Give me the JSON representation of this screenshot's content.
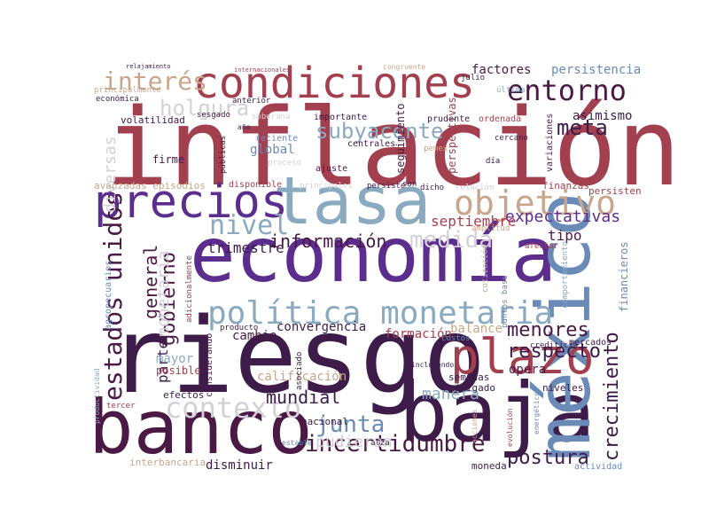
{
  "palette": {
    "wine": "#a3404f",
    "plum": "#3d1c4a",
    "deep": "#4a1a45",
    "purple": "#5b2d8c",
    "steel": "#8aaac0",
    "slate": "#6a8ab8",
    "tan": "#c9a58a",
    "pink": "#d4b4c0",
    "grey": "#c9c0cc"
  },
  "words": [
    {
      "id": "inflacion",
      "text": "inflación",
      "color": "#a3404f"
    },
    {
      "id": "riesgo",
      "text": "riesgo",
      "color": "#3d1c4a"
    },
    {
      "id": "economia",
      "text": "economía",
      "color": "#5b2d8c"
    },
    {
      "id": "banco",
      "text": "banco",
      "color": "#4a1a45"
    },
    {
      "id": "baja",
      "text": "baja",
      "color": "#3d1c4a"
    },
    {
      "id": "mexico",
      "text": "méxico",
      "color": "#6a8ab8"
    },
    {
      "id": "tasa",
      "text": "tasa",
      "color": "#8aaac0"
    },
    {
      "id": "precios",
      "text": "precios",
      "color": "#5b2d8c"
    },
    {
      "id": "condiciones",
      "text": "condiciones",
      "color": "#a3404f"
    },
    {
      "id": "plazo",
      "text": "plazo",
      "color": "#a3404f"
    },
    {
      "id": "politica_monetaria",
      "text": "política monetaria",
      "color": "#8aaac0"
    },
    {
      "id": "entorno",
      "text": "entorno",
      "color": "#4a1a45"
    },
    {
      "id": "objetivo",
      "text": "objetivo",
      "color": "#c9a58a"
    },
    {
      "id": "contexto",
      "text": "contexto",
      "color": "#d4d0d8"
    },
    {
      "id": "estados_unidos",
      "text": "estados unidos",
      "color": "#4a1a45"
    },
    {
      "id": "nivel",
      "text": "nivel",
      "color": "#8aaac0"
    },
    {
      "id": "interes",
      "text": "interés",
      "color": "#c9a58a"
    },
    {
      "id": "incertidumbre",
      "text": "incertidumbre",
      "color": "#4a1a45"
    },
    {
      "id": "holgura",
      "text": "holgura",
      "color": "#d4d0d8"
    },
    {
      "id": "subyacente",
      "text": "subyacente",
      "color": "#8aaac0"
    },
    {
      "id": "junta",
      "text": "junta",
      "color": "#6a8ab8"
    },
    {
      "id": "meta",
      "text": "meta",
      "color": "#3d1c4a"
    },
    {
      "id": "medida",
      "text": "medida",
      "color": "#d4d0d8"
    },
    {
      "id": "informacion",
      "text": "información",
      "color": "#4a1a45"
    },
    {
      "id": "postura",
      "text": "postura",
      "color": "#3d1c4a"
    },
    {
      "id": "crecimiento",
      "text": "crecimiento",
      "color": "#3d1c4a"
    },
    {
      "id": "expectativas",
      "text": "expectativas",
      "color": "#5b2d8c"
    },
    {
      "id": "gobierno",
      "text": "gobierno",
      "color": "#4a1a45"
    },
    {
      "id": "respecto",
      "text": "respecto",
      "color": "#3d1c4a"
    },
    {
      "id": "menores",
      "text": "menores",
      "color": "#4a1a45"
    },
    {
      "id": "general",
      "text": "general",
      "color": "#4a1a45"
    },
    {
      "id": "monetaria_v",
      "text": "monetaria",
      "color": "#d4d0d8"
    },
    {
      "id": "diversas",
      "text": "diversas",
      "color": "#d4d0d8"
    },
    {
      "id": "mundial",
      "text": "mundial",
      "color": "#3d1c4a"
    },
    {
      "id": "trimestre",
      "text": "trimestre",
      "color": "#3d1c4a"
    },
    {
      "id": "septiembre",
      "text": "septiembre",
      "color": "#a3404f"
    },
    {
      "id": "factores",
      "text": "factores",
      "color": "#4a1a45"
    },
    {
      "id": "persistencia",
      "text": "persistencia",
      "color": "#6a8ab8"
    },
    {
      "id": "asimismo",
      "text": "asimismo",
      "color": "#3d1c4a"
    },
    {
      "id": "tipo",
      "text": "tipo",
      "color": "#4a1a45"
    },
    {
      "id": "manera",
      "text": "manera",
      "color": "#8aaac0"
    },
    {
      "id": "pudieran",
      "text": "pudieran",
      "color": "#d4d0d8"
    },
    {
      "id": "parte",
      "text": "parte",
      "color": "#3d1c4a"
    },
    {
      "id": "cambio",
      "text": "cambio",
      "color": "#4a1a45"
    },
    {
      "id": "convergencia",
      "text": "convergencia",
      "color": "#3d1c4a"
    },
    {
      "id": "formacion",
      "text": "formación",
      "color": "#a3404f"
    },
    {
      "id": "balance",
      "text": "balance",
      "color": "#c9a58a"
    },
    {
      "id": "mayor",
      "text": "mayor",
      "color": "#8aaac0"
    },
    {
      "id": "calificacion",
      "text": "calificación",
      "color": "#c9a58a"
    },
    {
      "id": "disminuir",
      "text": "disminuir",
      "color": "#3d1c4a"
    },
    {
      "id": "opera",
      "text": "opera",
      "color": "#4a1a45"
    },
    {
      "id": "financieros",
      "text": "financieros",
      "color": "#6a8ab8"
    },
    {
      "id": "global",
      "text": "global",
      "color": "#6a8ab8"
    },
    {
      "id": "avanzadas_episodios",
      "text": "avanzadas episodios",
      "color": "#c9a58a"
    },
    {
      "id": "firme",
      "text": "firme",
      "color": "#3d1c4a"
    },
    {
      "id": "volatilidad",
      "text": "volatilidad",
      "color": "#3d1c4a"
    },
    {
      "id": "seguimiento",
      "text": "seguimiento",
      "color": "#4a1a45"
    },
    {
      "id": "perspectivas",
      "text": "perspectivas",
      "color": "#a3404f"
    },
    {
      "id": "finanzas",
      "text": "finanzas",
      "color": "#a3404f"
    },
    {
      "id": "persisten",
      "text": "persisten",
      "color": "#a3404f"
    },
    {
      "id": "mercados",
      "text": "mercados",
      "color": "#3d1c4a"
    },
    {
      "id": "crediticia",
      "text": "crediticia",
      "color": "#4a1a45"
    },
    {
      "id": "semanas",
      "text": "semanas",
      "color": "#3d1c4a"
    },
    {
      "id": "mitigado",
      "text": "mitigado",
      "color": "#3d1c4a"
    },
    {
      "id": "niveles",
      "text": "niveles",
      "color": "#4a1a45"
    },
    {
      "id": "moneda",
      "text": "moneda",
      "color": "#3d1c4a"
    },
    {
      "id": "nacional",
      "text": "nacional",
      "color": "#3d1c4a"
    },
    {
      "id": "actividad",
      "text": "actividad",
      "color": "#6a8ab8"
    },
    {
      "id": "posible",
      "text": "posible",
      "color": "#a3404f"
    },
    {
      "id": "efectos",
      "text": "efectos",
      "color": "#3d1c4a"
    },
    {
      "id": "interbancaria",
      "text": "interbancaria",
      "color": "#c9a58a"
    },
    {
      "id": "productividad",
      "text": "productividad",
      "color": "#8aaac0"
    },
    {
      "id": "agropecuarios",
      "text": "agropecuarios",
      "color": "#6a8ab8"
    },
    {
      "id": "considerando",
      "text": "considerando",
      "color": "#4a1a45"
    },
    {
      "id": "centrales",
      "text": "centrales",
      "color": "#3d1c4a"
    },
    {
      "id": "importante",
      "text": "importante",
      "color": "#3d1c4a"
    },
    {
      "id": "prudente",
      "text": "prudente",
      "color": "#3d1c4a"
    },
    {
      "id": "ordenada",
      "text": "ordenada",
      "color": "#a3404f"
    },
    {
      "id": "variaciones",
      "text": "variaciones",
      "color": "#4a1a45"
    },
    {
      "id": "presiones",
      "text": "presiones",
      "color": "#a3404f"
    },
    {
      "id": "reciente",
      "text": "reciente",
      "color": "#6a8ab8"
    },
    {
      "id": "ajuste",
      "text": "ajuste",
      "color": "#4a1a45"
    },
    {
      "id": "disponible",
      "text": "disponible",
      "color": "#a3404f"
    },
    {
      "id": "publicas",
      "text": "públicas",
      "color": "#4a1a45"
    },
    {
      "id": "persiste",
      "text": "persiste",
      "color": "#4a1a45"
    },
    {
      "id": "son",
      "text": "son",
      "color": "#3d1c4a"
    },
    {
      "id": "dicho",
      "text": "dicho",
      "color": "#3d1c4a"
    },
    {
      "id": "economica",
      "text": "económica",
      "color": "#3d1c4a"
    },
    {
      "id": "principalmente",
      "text": "principalmente",
      "color": "#c9a58a"
    },
    {
      "id": "anterior",
      "text": "anterior",
      "color": "#3d1c4a"
    },
    {
      "id": "sesgado",
      "text": "sesgado",
      "color": "#4a1a45"
    },
    {
      "id": "soberana",
      "text": "soberana",
      "color": "#d4d0d8"
    },
    {
      "id": "alza",
      "text": "alza",
      "color": "#3d1c4a"
    },
    {
      "id": "costos",
      "text": "costos",
      "color": "#6a8ab8"
    },
    {
      "id": "tercer",
      "text": "tercer",
      "color": "#a3404f"
    },
    {
      "id": "asociado",
      "text": "asociado",
      "color": "#3d1c4a"
    },
    {
      "id": "julio",
      "text": "julio",
      "color": "#3d1c4a"
    },
    {
      "id": "ultima",
      "text": "última",
      "color": "#8aaac0"
    },
    {
      "id": "cercano",
      "text": "cercano",
      "color": "#3d1c4a"
    },
    {
      "id": "dia",
      "text": "día",
      "color": "#3d1c4a"
    },
    {
      "id": "pemex",
      "text": "pemex",
      "color": "#c9a58a"
    },
    {
      "id": "amplitud",
      "text": "amplitud",
      "color": "#c9a58a"
    },
    {
      "id": "puntos_base",
      "text": "puntos base",
      "color": "#6a8ab8"
    },
    {
      "id": "comportamiento",
      "text": "comportamiento",
      "color": "#8aaac0"
    },
    {
      "id": "afectar",
      "text": "afectar",
      "color": "#a3404f"
    },
    {
      "id": "congruente",
      "text": "congruente",
      "color": "#c9a58a"
    },
    {
      "id": "proceso",
      "text": "proceso",
      "color": "#d4d0d8"
    },
    {
      "id": "principales",
      "text": "principales",
      "color": "#d4d0d8"
    },
    {
      "id": "relacion",
      "text": "relación",
      "color": "#d4d0d8"
    },
    {
      "id": "cotizacion",
      "text": "cotización",
      "color": "#c9a58a"
    },
    {
      "id": "producto",
      "text": "producto",
      "color": "#3d1c4a"
    },
    {
      "id": "adicionalmente",
      "text": "adicionalmente",
      "color": "#a3404f"
    },
    {
      "id": "relajamiento",
      "text": "relajamiento",
      "color": "#3d1c4a"
    },
    {
      "id": "internacionales",
      "text": "internacionales",
      "color": "#a3404f"
    },
    {
      "id": "estable",
      "text": "estable",
      "color": "#6a8ab8"
    },
    {
      "id": "ano",
      "text": "año",
      "color": "#3d1c4a"
    },
    {
      "id": "incluyendo",
      "text": "incluyendo",
      "color": "#3d1c4a"
    },
    {
      "id": "acciones",
      "text": "acciones",
      "color": "#c9a58a"
    },
    {
      "id": "evolucion",
      "text": "evolución",
      "color": "#a3404f"
    },
    {
      "id": "energeticos",
      "text": "energéticos",
      "color": "#6a8ab8"
    }
  ]
}
